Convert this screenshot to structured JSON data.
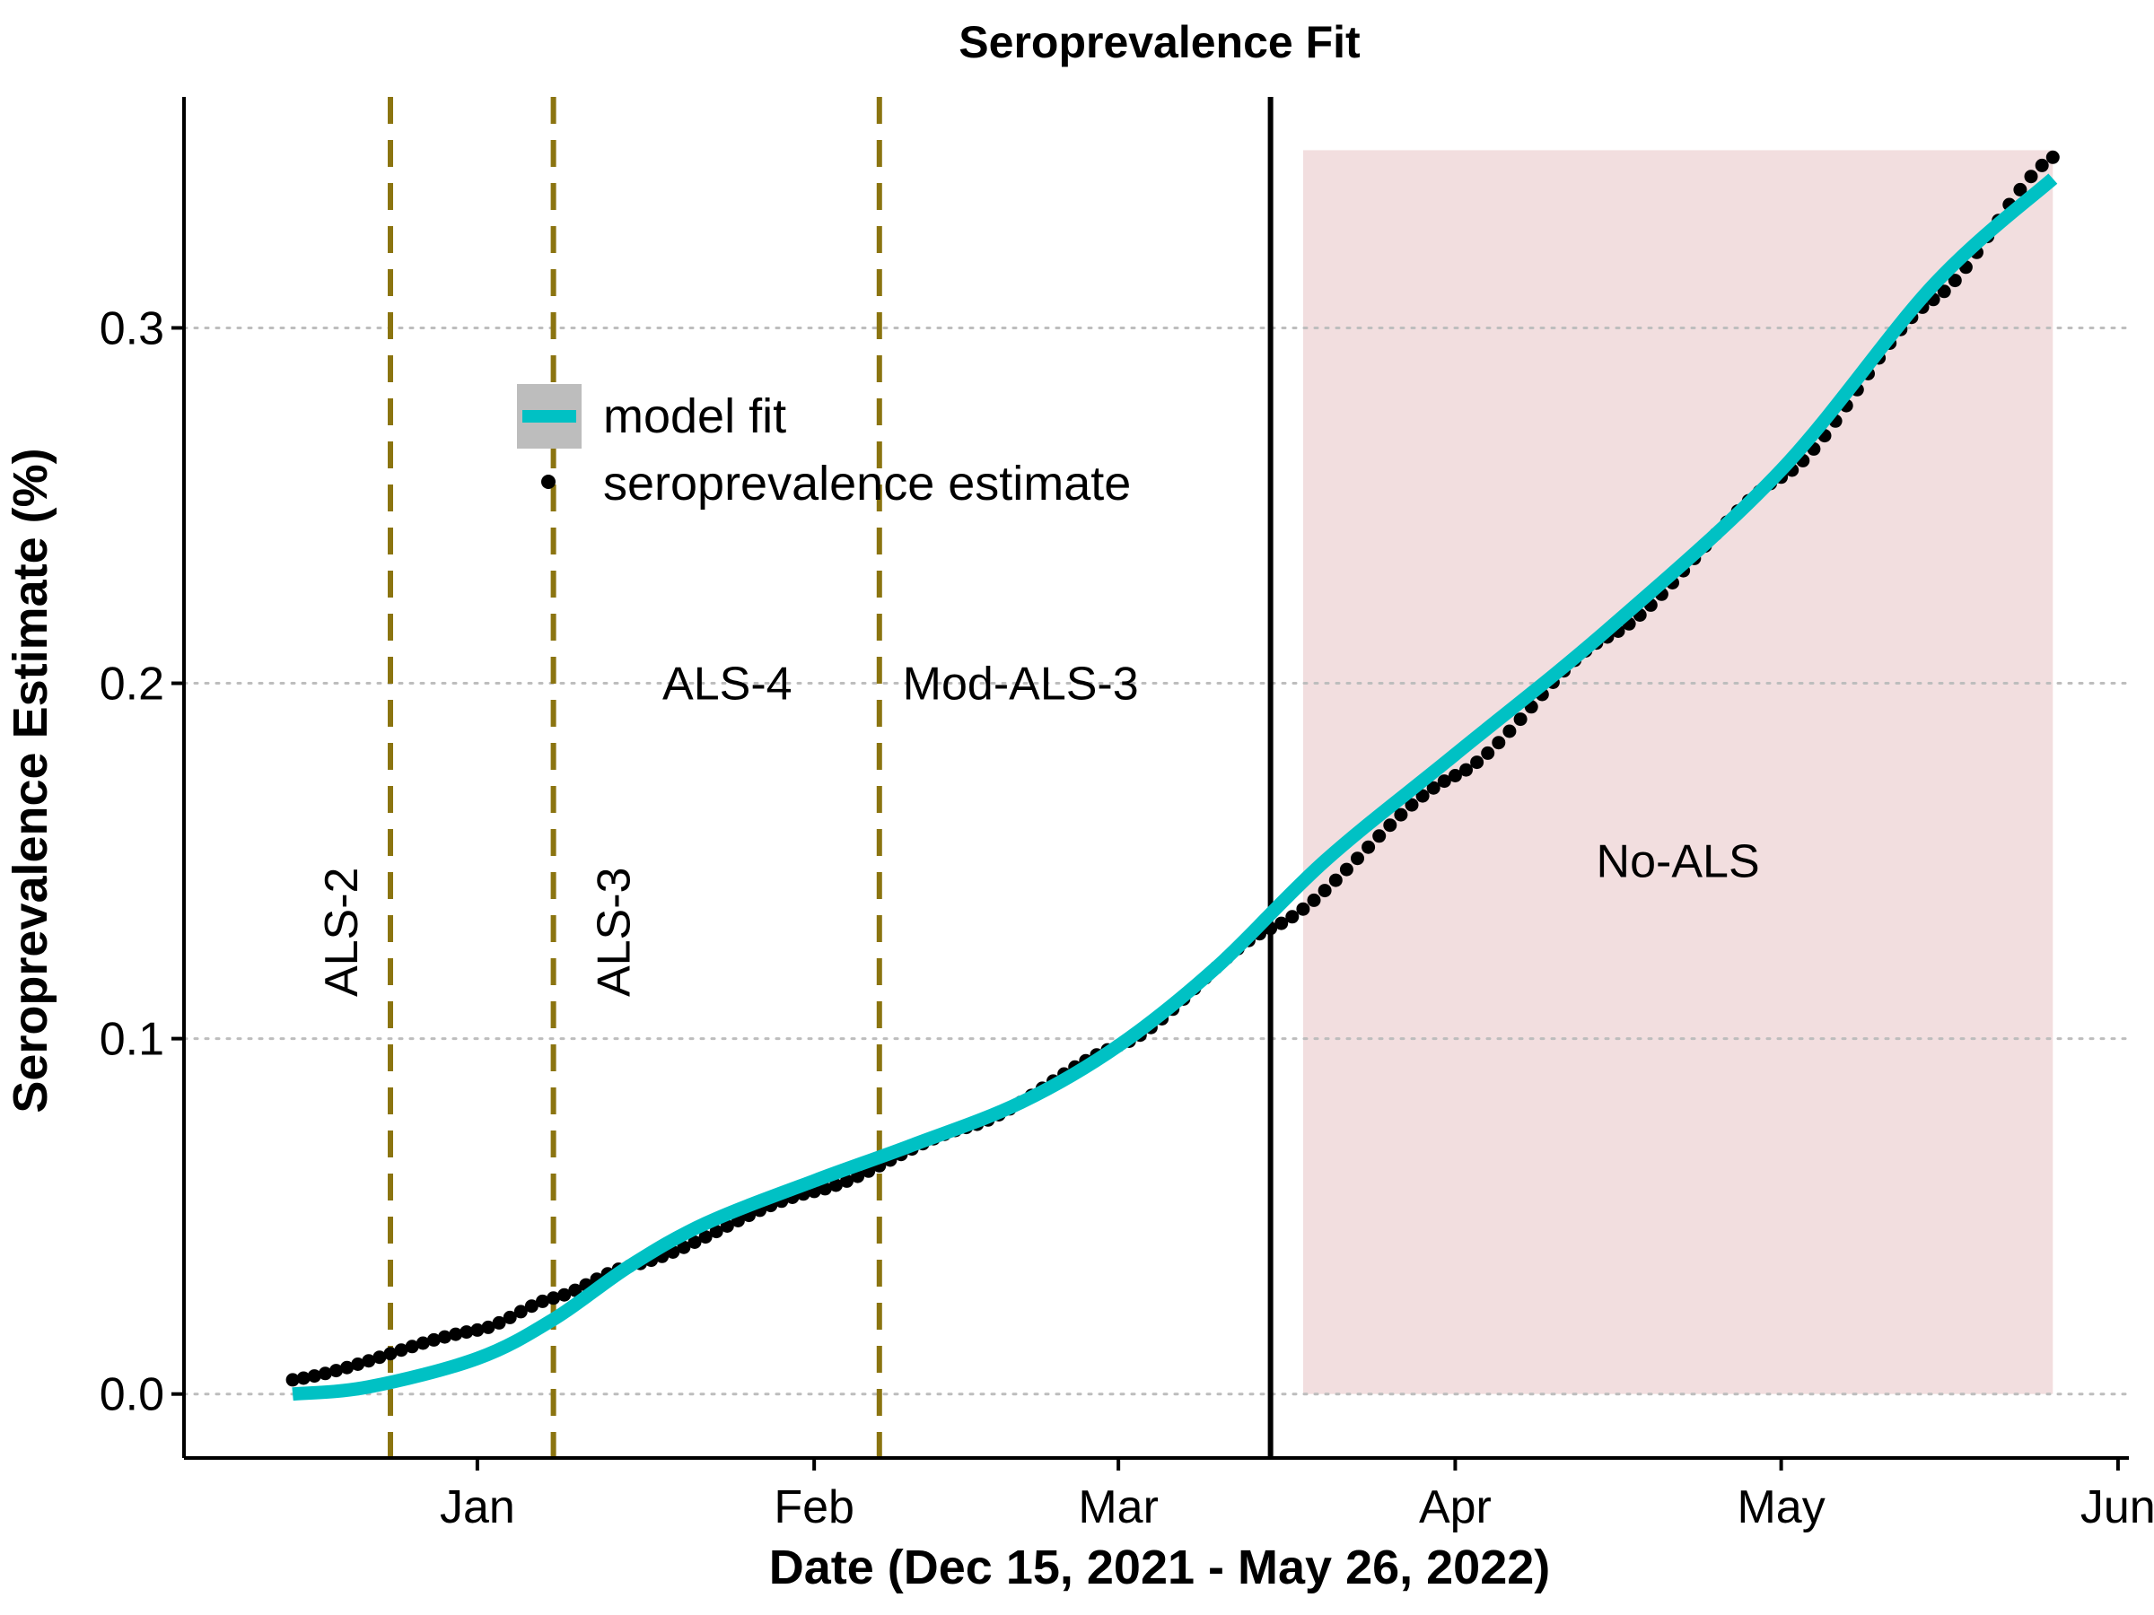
{
  "chart_data": {
    "type": "line",
    "title": "Seroprevalence Fit",
    "xlabel": "Date (Dec 15, 2021 - May 26, 2022)",
    "ylabel": "Seroprevalence Estimate (%)",
    "x_start": "2021-12-15",
    "x_end": "2022-05-26",
    "xlim": [
      "2021-12-05",
      "2022-06-02"
    ],
    "ylim": [
      -0.018,
      0.365
    ],
    "x_ticks": [
      {
        "date": "2022-01-01",
        "label": "Jan"
      },
      {
        "date": "2022-02-01",
        "label": "Feb"
      },
      {
        "date": "2022-03-01",
        "label": "Mar"
      },
      {
        "date": "2022-04-01",
        "label": "Apr"
      },
      {
        "date": "2022-05-01",
        "label": "May"
      },
      {
        "date": "2022-06-01",
        "label": "Jun"
      }
    ],
    "y_ticks": [
      0.0,
      0.1,
      0.2,
      0.3
    ],
    "y_tick_labels": [
      "0.0",
      "0.1",
      "0.2",
      "0.3"
    ],
    "grid": "horizontal dotted",
    "legend_position": "upper-left",
    "series": [
      {
        "name": "seroprevalence estimate",
        "style": "points",
        "color": "#000000",
        "x": [
          "2021-12-15",
          "2022-01-01",
          "2022-01-08",
          "2022-01-15",
          "2022-02-01",
          "2022-02-15",
          "2022-03-01",
          "2022-03-15",
          "2022-04-01",
          "2022-04-15",
          "2022-05-01",
          "2022-05-15",
          "2022-05-26"
        ],
        "y": [
          0.004,
          0.018,
          0.027,
          0.036,
          0.057,
          0.075,
          0.098,
          0.131,
          0.174,
          0.213,
          0.258,
          0.308,
          0.348
        ]
      },
      {
        "name": "model fit",
        "style": "line",
        "color": "#00C1C4",
        "x": [
          "2021-12-15",
          "2021-12-22",
          "2022-01-01",
          "2022-01-08",
          "2022-01-15",
          "2022-01-22",
          "2022-02-01",
          "2022-02-10",
          "2022-02-20",
          "2022-03-01",
          "2022-03-10",
          "2022-03-20",
          "2022-04-01",
          "2022-04-15",
          "2022-05-01",
          "2022-05-15",
          "2022-05-26"
        ],
        "y": [
          0.0,
          0.002,
          0.01,
          0.021,
          0.036,
          0.048,
          0.06,
          0.07,
          0.082,
          0.098,
          0.12,
          0.15,
          0.18,
          0.215,
          0.26,
          0.312,
          0.342
        ]
      }
    ],
    "vlines": [
      {
        "date": "2021-12-24",
        "label": "ALS-2",
        "style": "dashed",
        "color": "#8B7410",
        "label_orientation": "vertical",
        "label_y": 0.13
      },
      {
        "date": "2022-01-08",
        "label": "ALS-3",
        "style": "dashed",
        "color": "#8B7410",
        "label_orientation": "vertical",
        "label_y": 0.13
      },
      {
        "date": "2022-02-07",
        "label": "",
        "style": "dashed",
        "color": "#8B7410"
      },
      {
        "date": "2022-03-15",
        "label": "",
        "style": "solid",
        "color": "#000000"
      }
    ],
    "region_labels": [
      {
        "text": "ALS-4",
        "date": "2022-01-24",
        "y": 0.2
      },
      {
        "text": "Mod-ALS-3",
        "date": "2022-02-20",
        "y": 0.2
      }
    ],
    "shaded_region": {
      "start": "2022-03-18",
      "end": "2022-05-26",
      "ymin": 0.0,
      "ymax": 0.35,
      "color": "#F2DEDF",
      "label": "No-ALS",
      "label_y": 0.15
    }
  }
}
